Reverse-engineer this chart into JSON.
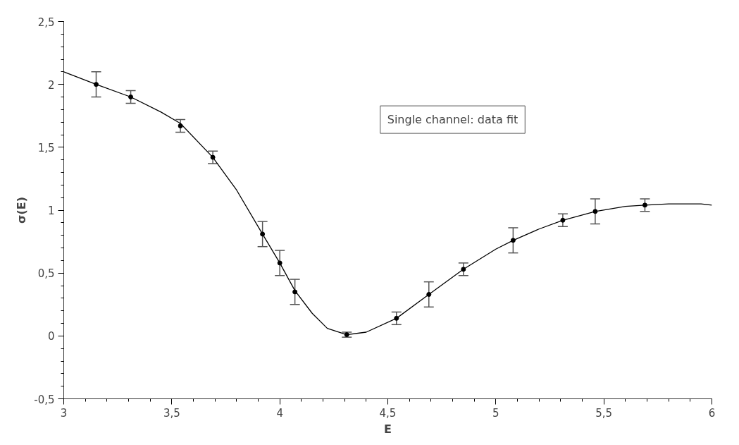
{
  "chart_data": {
    "type": "scatter",
    "xlabel": "E",
    "ylabel": "σ(E)",
    "annotations": [
      "Single channel: data fit"
    ],
    "xlim": [
      3,
      6
    ],
    "ylim": [
      -0.5,
      2.5
    ],
    "xticks": [
      3,
      {
        "value": 3.5,
        "label": "3,5"
      },
      4,
      {
        "value": 4.5,
        "label": "4,5"
      },
      5,
      {
        "value": 5.5,
        "label": "5,5"
      },
      6
    ],
    "yticks": [
      {
        "value": -0.5,
        "label": "-0,5"
      },
      0,
      {
        "value": 0.5,
        "label": "0,5"
      },
      1,
      {
        "value": 1.5,
        "label": "1,5"
      },
      2,
      {
        "value": 2.5,
        "label": "2,5"
      }
    ],
    "grid": false,
    "series": [
      {
        "marker": "circle",
        "color": "#000000",
        "x": [
          3.15,
          3.31,
          3.54,
          3.69,
          3.92,
          4.0,
          4.07,
          4.31,
          4.54,
          4.69,
          4.85,
          5.08,
          5.31,
          5.46,
          5.69
        ],
        "values": [
          2.0,
          1.9,
          1.67,
          1.42,
          0.81,
          0.58,
          0.35,
          0.01,
          0.14,
          0.33,
          0.53,
          0.76,
          0.92,
          0.99,
          1.04
        ],
        "errors": [
          0.1,
          0.05,
          0.05,
          0.05,
          0.1,
          0.1,
          0.1,
          0.02,
          0.05,
          0.1,
          0.05,
          0.1,
          0.05,
          0.1,
          0.05
        ]
      },
      {
        "type": "line",
        "color": "#000000",
        "line_style": "solid",
        "x": [
          3,
          3.15,
          3.31,
          3.45,
          3.54,
          3.69,
          3.8,
          3.92,
          4.0,
          4.07,
          4.15,
          4.22,
          4.31,
          4.4,
          4.54,
          4.69,
          4.85,
          5.0,
          5.08,
          5.2,
          5.31,
          5.46,
          5.6,
          5.69,
          5.8,
          5.95,
          6.0
        ],
        "values": [
          2.1,
          2.0,
          1.9,
          1.78,
          1.69,
          1.42,
          1.16,
          0.81,
          0.58,
          0.36,
          0.18,
          0.06,
          0.01,
          0.03,
          0.14,
          0.33,
          0.53,
          0.69,
          0.76,
          0.85,
          0.92,
          0.99,
          1.03,
          1.04,
          1.05,
          1.05,
          1.04
        ]
      }
    ]
  }
}
